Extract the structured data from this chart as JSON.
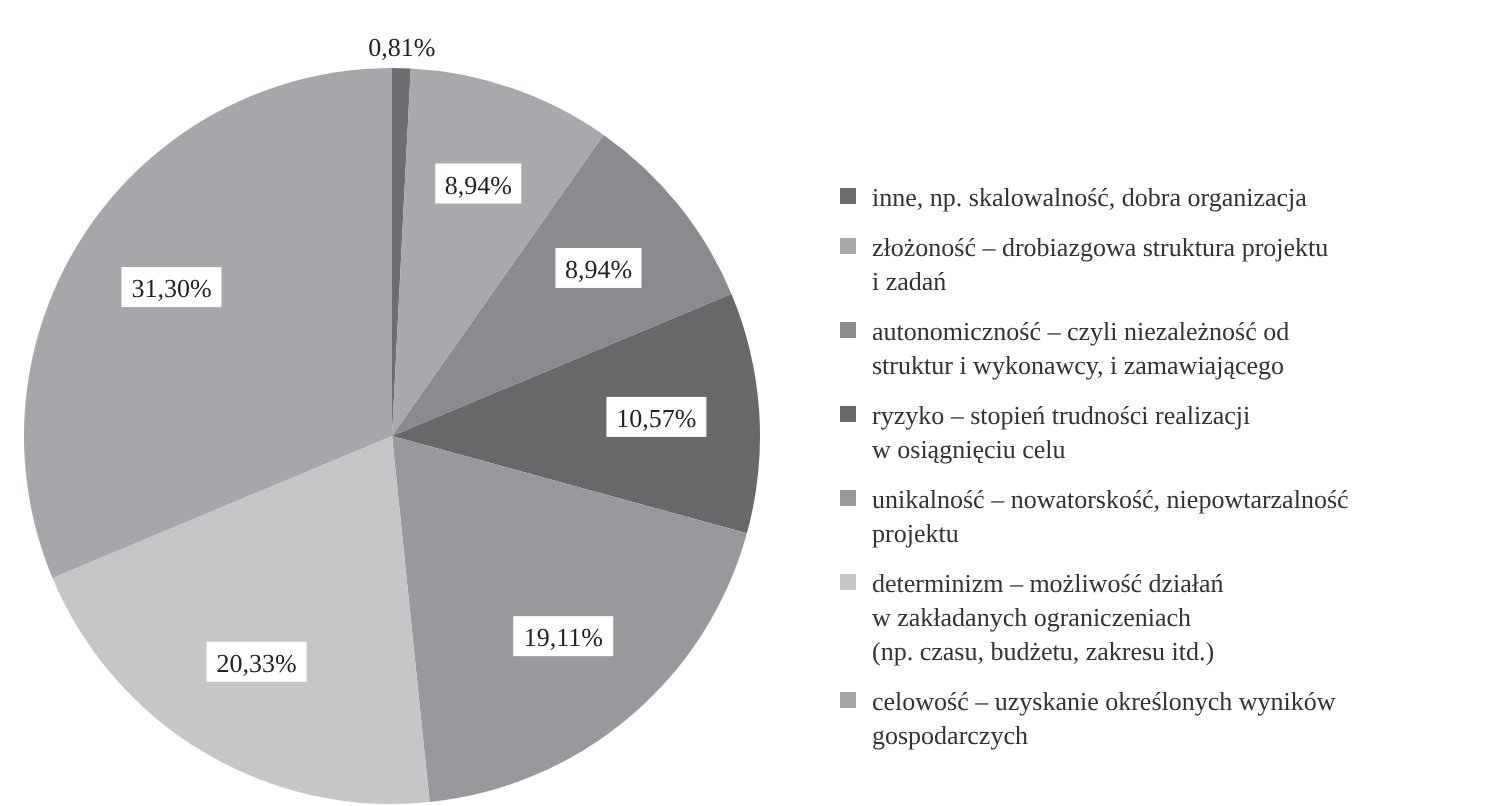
{
  "chart_data": {
    "type": "pie",
    "categories": [
      "inne, np. skalowalność, dobra organizacja",
      "złożoność – drobiazgowa struktura projektu\ni zadań",
      "autonomiczność – czyli niezależność od\nstruktur i wykonawcy, i zamawiającego",
      "ryzyko – stopień trudności realizacji\nw osiągnięciu celu",
      "unikalność – nowatorskość, niepowtarzalność\nprojektu",
      "determinizm – możliwość działań\nw zakładanych ograniczeniach\n(np. czasu, budżetu, zakresu itd.)",
      "celowość – uzyskanie określonych wyników\ngospodarczych"
    ],
    "values": [
      0.81,
      8.94,
      8.94,
      10.57,
      19.11,
      20.33,
      31.3
    ],
    "value_labels": [
      "0,81%",
      "8,94%",
      "8,94%",
      "10,57%",
      "19,11%",
      "20,33%",
      "31,30%"
    ],
    "colors": [
      "#6e6e72",
      "#a8a9ad",
      "#8a8b8f",
      "#68686b",
      "#98999d",
      "#c5c6c8",
      "#a6a7ab"
    ],
    "legend": "right"
  }
}
